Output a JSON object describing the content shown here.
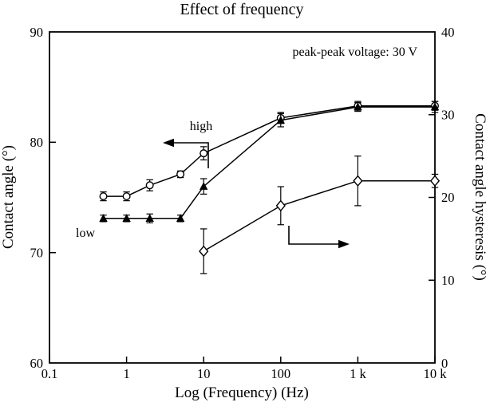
{
  "page": {
    "background": "#ffffff",
    "ink_color": "#000000"
  },
  "chart_data": {
    "type": "line",
    "title": "Effect of frequency",
    "xlabel": "Log (Frequency) (Hz)",
    "ylabel_left": "Contact angle (°)",
    "ylabel_right": "Contact angle hysteresis (°)",
    "annotation": "peak-peak voltage: 30 V",
    "curve_labels": {
      "high": "high",
      "low": "low"
    },
    "x_scale": "log",
    "xlim": [
      0.1,
      10000
    ],
    "x_ticks": [
      {
        "value": 0.1,
        "label": "0.1"
      },
      {
        "value": 1,
        "label": "1"
      },
      {
        "value": 10,
        "label": "10"
      },
      {
        "value": 100,
        "label": "100"
      },
      {
        "value": 1000,
        "label": "1 k"
      },
      {
        "value": 10000,
        "label": "10 k"
      }
    ],
    "ylim_left": [
      60,
      90
    ],
    "y_ticks_left": [
      "60",
      "70",
      "80",
      "90"
    ],
    "ylim_right": [
      0,
      40
    ],
    "y_ticks_right": [
      "0",
      "10",
      "20",
      "30",
      "40"
    ],
    "grid": false,
    "legend": "none",
    "series": [
      {
        "name": "contact angle (high)",
        "axis": "left",
        "marker": "open-circle",
        "color": "#000000",
        "x": [
          0.5,
          1,
          2,
          5,
          10,
          100,
          1000,
          10000
        ],
        "y": [
          75.1,
          75.1,
          76.1,
          77.1,
          79.0,
          82.2,
          83.3,
          83.3
        ],
        "yerr": [
          0.4,
          0.4,
          0.5,
          0.3,
          0.6,
          0.5,
          0.4,
          0.4
        ]
      },
      {
        "name": "contact angle (low)",
        "axis": "left",
        "marker": "filled-triangle",
        "color": "#000000",
        "x": [
          0.5,
          1,
          2,
          5,
          10,
          100,
          1000,
          10000
        ],
        "y": [
          73.1,
          73.1,
          73.1,
          73.1,
          76.0,
          82.0,
          83.2,
          83.2
        ],
        "yerr": [
          0.3,
          0.3,
          0.4,
          0.3,
          0.7,
          0.6,
          0.4,
          0.5
        ]
      },
      {
        "name": "contact angle hysteresis",
        "axis": "right",
        "marker": "open-diamond",
        "color": "#000000",
        "x": [
          10,
          100,
          1000,
          10000
        ],
        "y": [
          13.5,
          19.0,
          22.0,
          22.0
        ],
        "yerr": [
          2.7,
          2.3,
          3.0,
          0.8
        ]
      }
    ]
  }
}
